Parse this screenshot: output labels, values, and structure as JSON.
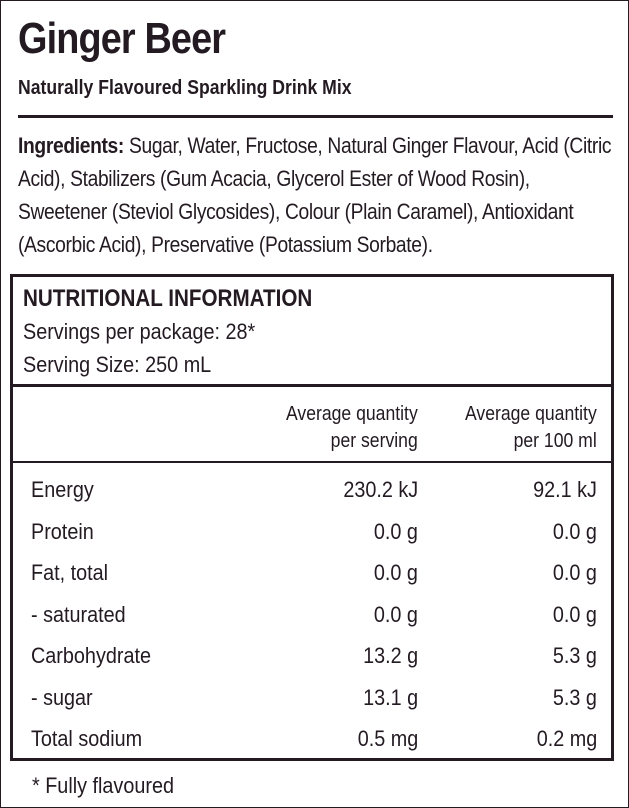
{
  "product": {
    "title": "Ginger Beer",
    "subtitle": "Naturally Flavoured Sparkling Drink Mix"
  },
  "ingredients": {
    "label": "Ingredients:",
    "text": "Sugar, Water, Fructose, Natural Ginger Flavour, Acid (Citric Acid), Stabilizers (Gum Acacia, Glycerol Ester of Wood Rosin), Sweetener (Steviol Glycosides), Colour (Plain Caramel), Antioxidant (Ascorbic Acid), Preservative (Potassium Sorbate)."
  },
  "nutrition": {
    "heading": "NUTRITIONAL INFORMATION",
    "servings_per_package": "Servings per package: 28*",
    "serving_size": "Serving Size: 250 mL",
    "col_serving_line1": "Average quantity",
    "col_serving_line2": "per serving",
    "col_100_line1": "Average quantity",
    "col_100_line2": "per 100 ml",
    "rows": [
      {
        "name": "Energy",
        "per_serving": "230.2 kJ",
        "per_100": "92.1 kJ"
      },
      {
        "name": "Protein",
        "per_serving": "0.0 g",
        "per_100": "0.0 g"
      },
      {
        "name": "Fat, total",
        "per_serving": "0.0 g",
        "per_100": "0.0 g"
      },
      {
        "name": "- saturated",
        "per_serving": "0.0 g",
        "per_100": "0.0 g"
      },
      {
        "name": "Carbohydrate",
        "per_serving": "13.2 g",
        "per_100": "5.3 g"
      },
      {
        "name": "- sugar",
        "per_serving": "13.1 g",
        "per_100": "5.3 g"
      },
      {
        "name": "Total sodium",
        "per_serving": "0.5 mg",
        "per_100": "0.2 mg"
      }
    ]
  },
  "footnote": "* Fully flavoured",
  "colors": {
    "ink": "#231a22",
    "background": "#ffffff"
  }
}
